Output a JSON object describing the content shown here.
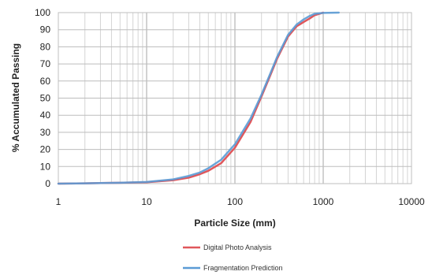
{
  "chart_data": {
    "type": "line",
    "title": "",
    "xlabel": "Particle Size (mm)",
    "ylabel": "% Accumulated Passing",
    "xscale": "log",
    "xlim": [
      1,
      10000
    ],
    "ylim": [
      0,
      100
    ],
    "x_ticks": [
      1,
      10,
      100,
      1000,
      10000
    ],
    "x_tick_labels": [
      "1",
      "10",
      "100",
      "1000",
      "10000"
    ],
    "y_ticks": [
      0,
      10,
      20,
      30,
      40,
      50,
      60,
      70,
      80,
      90,
      100
    ],
    "y_tick_labels": [
      "0",
      "10",
      "20",
      "30",
      "40",
      "50",
      "60",
      "70",
      "80",
      "90",
      "100"
    ],
    "grid": true,
    "legend_position": "bottom",
    "series": [
      {
        "name": "Digital Photo Analysis",
        "color": "#e0575b",
        "points": [
          {
            "x": 1,
            "y": 0
          },
          {
            "x": 2,
            "y": 0.2
          },
          {
            "x": 5,
            "y": 0.5
          },
          {
            "x": 10,
            "y": 0.8
          },
          {
            "x": 20,
            "y": 2
          },
          {
            "x": 30,
            "y": 3.5
          },
          {
            "x": 40,
            "y": 5.5
          },
          {
            "x": 50,
            "y": 7.5
          },
          {
            "x": 70,
            "y": 12
          },
          {
            "x": 100,
            "y": 21
          },
          {
            "x": 150,
            "y": 36
          },
          {
            "x": 200,
            "y": 51
          },
          {
            "x": 250,
            "y": 63
          },
          {
            "x": 300,
            "y": 73
          },
          {
            "x": 400,
            "y": 86
          },
          {
            "x": 500,
            "y": 92
          },
          {
            "x": 600,
            "y": 94.5
          },
          {
            "x": 700,
            "y": 96.5
          },
          {
            "x": 800,
            "y": 98.5
          },
          {
            "x": 1000,
            "y": 100
          }
        ]
      },
      {
        "name": "Fragmentation Prediction",
        "color": "#5b9bd5",
        "points": [
          {
            "x": 1,
            "y": 0
          },
          {
            "x": 2,
            "y": 0.2
          },
          {
            "x": 5,
            "y": 0.5
          },
          {
            "x": 10,
            "y": 1
          },
          {
            "x": 20,
            "y": 2.5
          },
          {
            "x": 30,
            "y": 4.5
          },
          {
            "x": 40,
            "y": 6.5
          },
          {
            "x": 50,
            "y": 9
          },
          {
            "x": 70,
            "y": 14
          },
          {
            "x": 100,
            "y": 23
          },
          {
            "x": 150,
            "y": 38
          },
          {
            "x": 200,
            "y": 52
          },
          {
            "x": 250,
            "y": 64
          },
          {
            "x": 300,
            "y": 74
          },
          {
            "x": 400,
            "y": 87
          },
          {
            "x": 500,
            "y": 93
          },
          {
            "x": 600,
            "y": 96
          },
          {
            "x": 700,
            "y": 98
          },
          {
            "x": 800,
            "y": 99.3
          },
          {
            "x": 1000,
            "y": 99.8
          },
          {
            "x": 1500,
            "y": 100
          }
        ]
      }
    ]
  }
}
